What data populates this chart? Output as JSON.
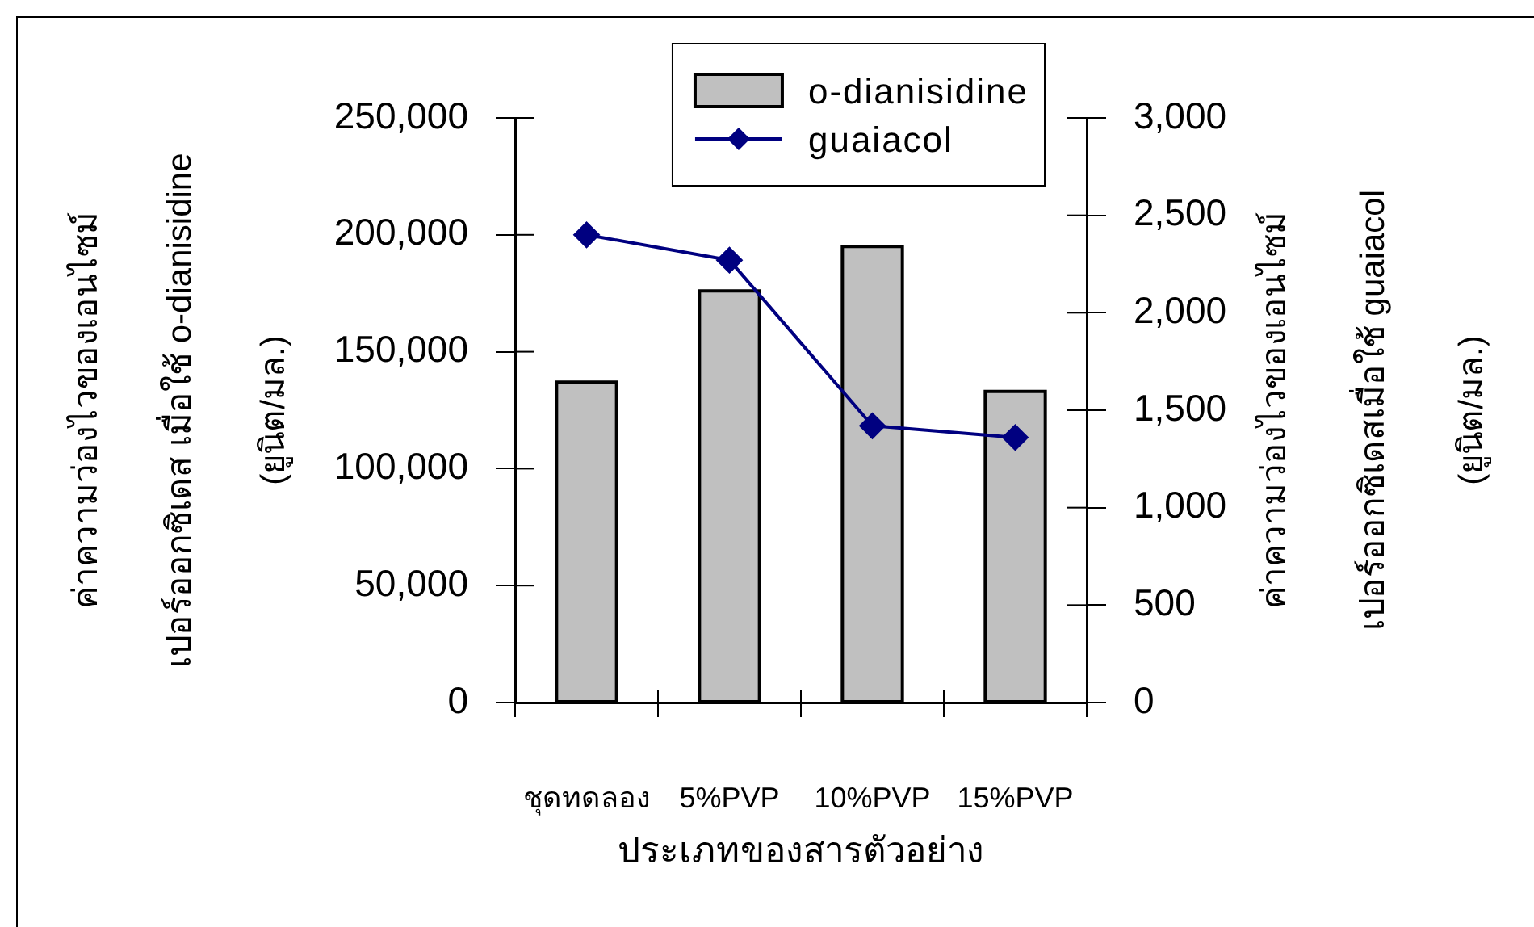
{
  "chart_data": {
    "type": "bar",
    "xlabel": "ประเภทของสารตัวอย่าง",
    "ylabel": "ค่าความว่องไวของเอนไซม์\nเปอร์ออกซิเดส เมื่อใช้ o-dianisidine\n(ยูนิต/มล.)",
    "y2label": "ค่าความว่องไวของเอนไซม์\nเปอร์ออกซิเดสเมื่อใช้ guaiacol\n(ยูนิต/มล.)",
    "categories": [
      "ชุดทดลอง",
      "5%PVP",
      "10%PVP",
      "15%PVP"
    ],
    "series": [
      {
        "name": "o-dianisidine",
        "color": "#c0c0c0",
        "values": [
          137000,
          176000,
          195000,
          133000
        ]
      },
      {
        "name": "guaiacol",
        "type": "line",
        "axis": "y2",
        "color": "#000080",
        "values": [
          2400,
          2270,
          1420,
          1360
        ]
      }
    ],
    "ylim": [
      0,
      250000
    ],
    "yticks": [
      {
        "value": 0,
        "label": "0"
      },
      {
        "value": 50000,
        "label": "50,000"
      },
      {
        "value": 100000,
        "label": "100,000"
      },
      {
        "value": 150000,
        "label": "150,000"
      },
      {
        "value": 200000,
        "label": "200,000"
      },
      {
        "value": 250000,
        "label": "250,000"
      }
    ],
    "y2lim": [
      0,
      3000
    ],
    "y2ticks": [
      {
        "value": 0,
        "label": "0"
      },
      {
        "value": 500,
        "label": "500"
      },
      {
        "value": 1000,
        "label": "1,000"
      },
      {
        "value": 1500,
        "label": "1,500"
      },
      {
        "value": 2000,
        "label": "2,000"
      },
      {
        "value": 2500,
        "label": "2,500"
      },
      {
        "value": 3000,
        "label": "3,000"
      }
    ],
    "grid": false,
    "legend": "top right",
    "marker": "diamond"
  }
}
